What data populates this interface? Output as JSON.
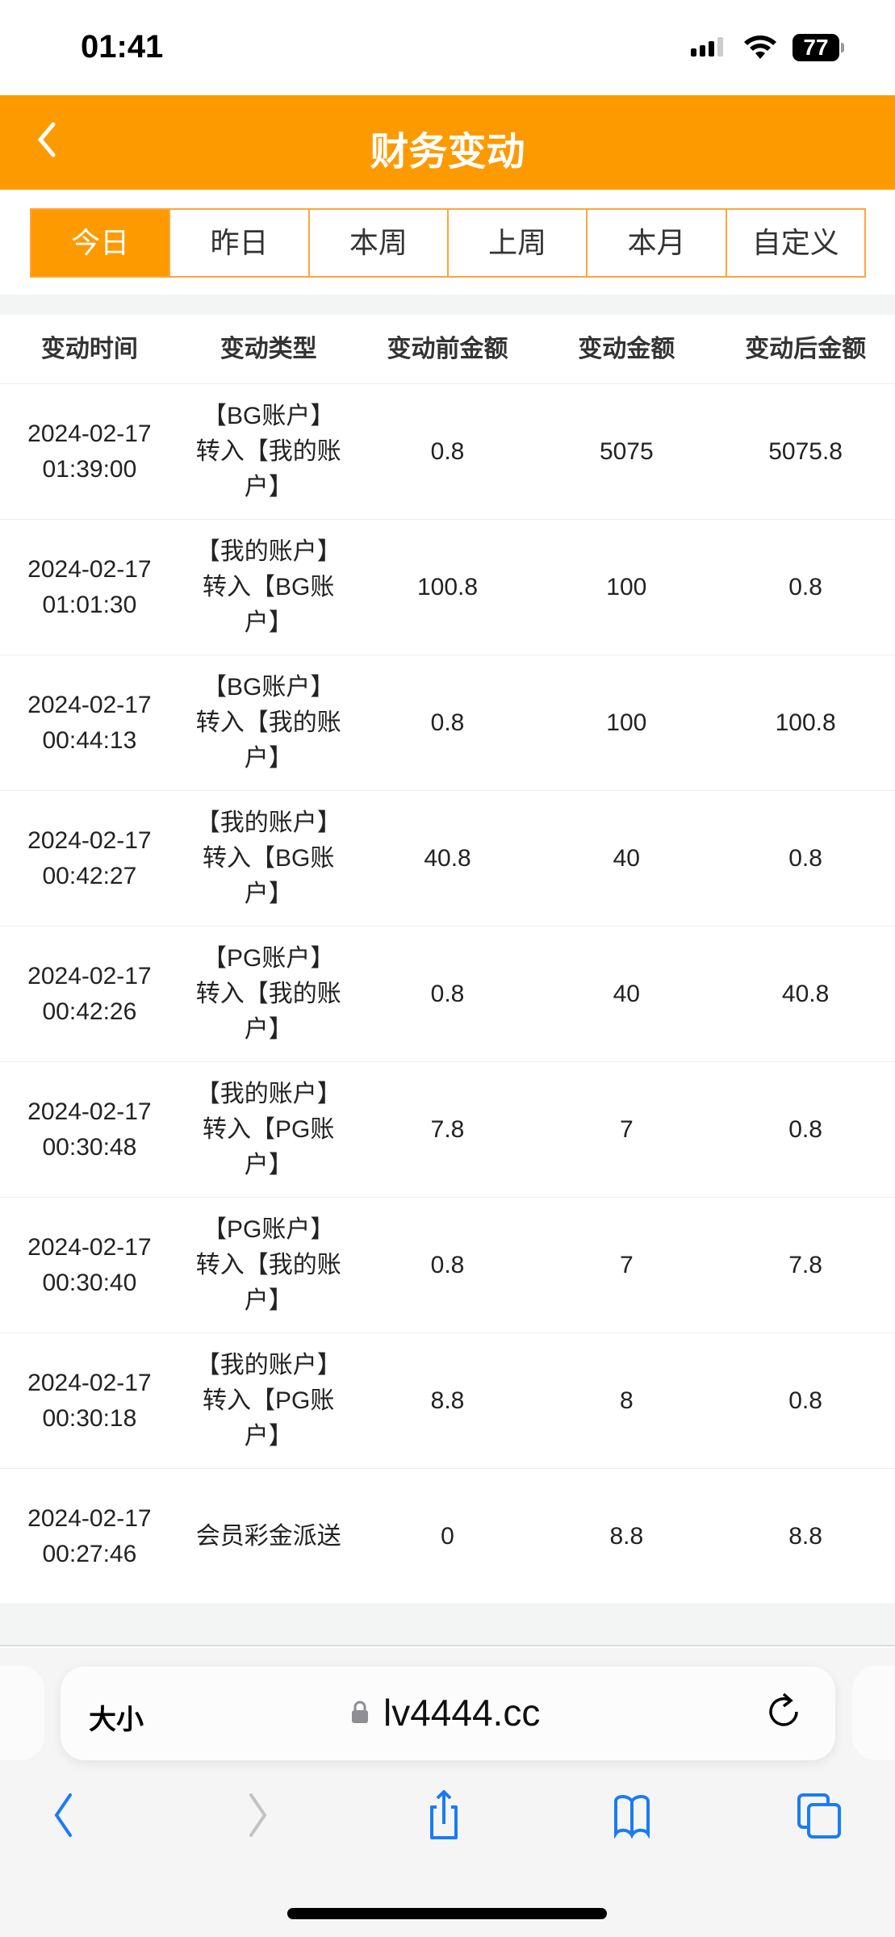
{
  "status_bar": {
    "time": "01:41",
    "battery": "77"
  },
  "header": {
    "title": "财务变动"
  },
  "tabs": [
    {
      "label": "今日",
      "active": true
    },
    {
      "label": "昨日"
    },
    {
      "label": "本周"
    },
    {
      "label": "上周"
    },
    {
      "label": "本月"
    },
    {
      "label": "自定义"
    }
  ],
  "table": {
    "columns": [
      "变动时间",
      "变动类型",
      "变动前金额",
      "变动金额",
      "变动后金额"
    ],
    "rows": [
      {
        "date": "2024-02-17",
        "time": "01:39:00",
        "type": "【BG账户】转入【我的账户】",
        "before": "0.8",
        "amount": "5075",
        "after": "5075.8"
      },
      {
        "date": "2024-02-17",
        "time": "01:01:30",
        "type": "【我的账户】转入【BG账户】",
        "before": "100.8",
        "amount": "100",
        "after": "0.8"
      },
      {
        "date": "2024-02-17",
        "time": "00:44:13",
        "type": "【BG账户】转入【我的账户】",
        "before": "0.8",
        "amount": "100",
        "after": "100.8"
      },
      {
        "date": "2024-02-17",
        "time": "00:42:27",
        "type": "【我的账户】转入【BG账户】",
        "before": "40.8",
        "amount": "40",
        "after": "0.8"
      },
      {
        "date": "2024-02-17",
        "time": "00:42:26",
        "type": "【PG账户】转入【我的账户】",
        "before": "0.8",
        "amount": "40",
        "after": "40.8"
      },
      {
        "date": "2024-02-17",
        "time": "00:30:48",
        "type": "【我的账户】转入【PG账户】",
        "before": "7.8",
        "amount": "7",
        "after": "0.8"
      },
      {
        "date": "2024-02-17",
        "time": "00:30:40",
        "type": "【PG账户】转入【我的账户】",
        "before": "0.8",
        "amount": "7",
        "after": "7.8"
      },
      {
        "date": "2024-02-17",
        "time": "00:30:18",
        "type": "【我的账户】转入【PG账户】",
        "before": "8.8",
        "amount": "8",
        "after": "0.8"
      },
      {
        "date": "2024-02-17",
        "time": "00:27:46",
        "type": "会员彩金派送",
        "before": "0",
        "amount": "8.8",
        "after": "8.8"
      }
    ]
  },
  "browser": {
    "text_size": "大小",
    "url": "lv4444.cc"
  },
  "colors": {
    "brand": "#fd9a00",
    "ios_blue": "#1a7cf5"
  }
}
